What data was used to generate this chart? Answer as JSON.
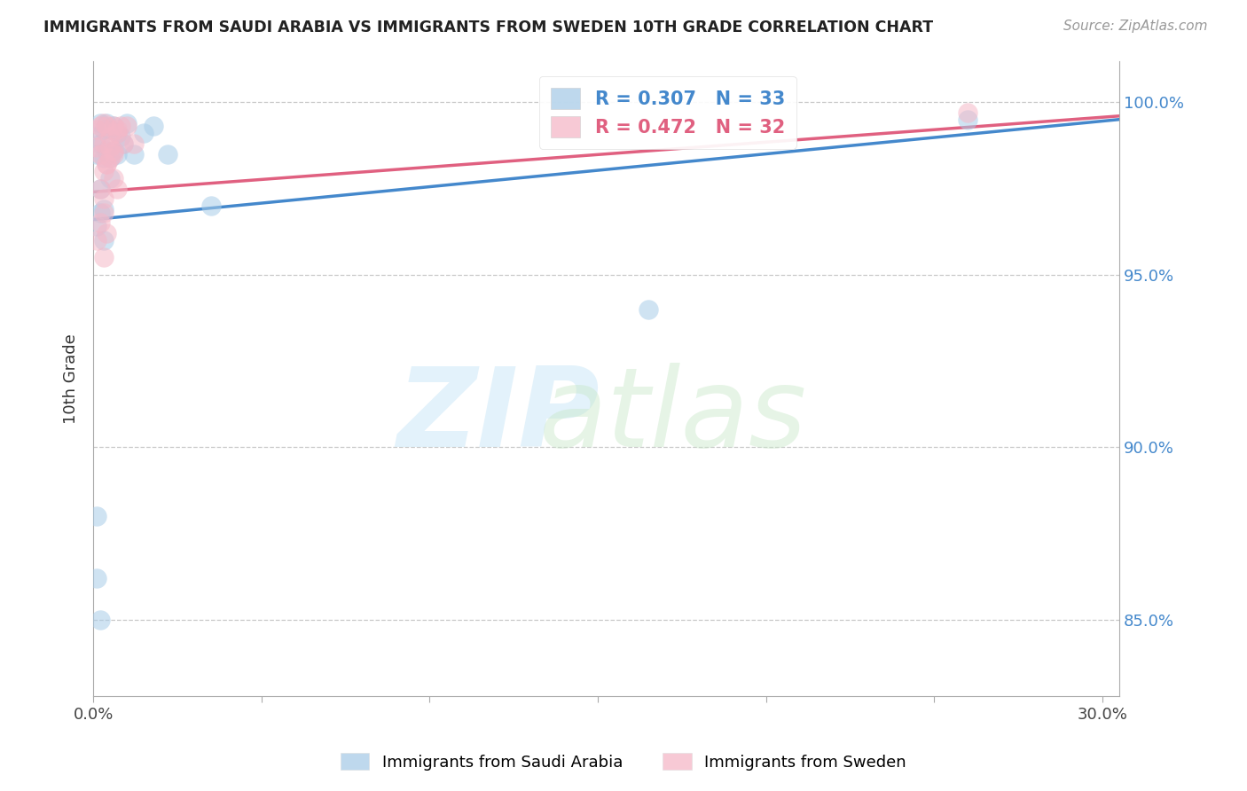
{
  "title": "IMMIGRANTS FROM SAUDI ARABIA VS IMMIGRANTS FROM SWEDEN 10TH GRADE CORRELATION CHART",
  "source": "Source: ZipAtlas.com",
  "ylabel": "10th Grade",
  "blue_color": "#a8cce8",
  "pink_color": "#f5b8c8",
  "blue_line_color": "#4488cc",
  "pink_line_color": "#e06080",
  "legend_blue_label": "R = 0.307   N = 33",
  "legend_pink_label": "R = 0.472   N = 32",
  "legend_bottom_blue": "Immigrants from Saudi Arabia",
  "legend_bottom_pink": "Immigrants from Sweden",
  "xlim": [
    0.0,
    0.305
  ],
  "ylim": [
    0.828,
    1.012
  ],
  "yticks": [
    0.85,
    0.9,
    0.95,
    1.0
  ],
  "ytick_labels": [
    "85.0%",
    "90.0%",
    "95.0%",
    "100.0%"
  ],
  "xtick_left_label": "0.0%",
  "xtick_right_label": "30.0%",
  "blue_line_x0": 0.0,
  "blue_line_y0": 0.966,
  "blue_line_x1": 0.305,
  "blue_line_y1": 0.995,
  "pink_line_x0": 0.0,
  "pink_line_y0": 0.974,
  "pink_line_x1": 0.305,
  "pink_line_y1": 0.996,
  "saudi_x": [
    0.001,
    0.001,
    0.002,
    0.002,
    0.003,
    0.003,
    0.004,
    0.004,
    0.005,
    0.005,
    0.005,
    0.006,
    0.006,
    0.007,
    0.007,
    0.008,
    0.009,
    0.01,
    0.012,
    0.015,
    0.018,
    0.022,
    0.035,
    0.001,
    0.002,
    0.002,
    0.003,
    0.003,
    0.001,
    0.001,
    0.002,
    0.26,
    0.165
  ],
  "saudi_y": [
    0.99,
    0.985,
    0.994,
    0.988,
    0.992,
    0.984,
    0.994,
    0.986,
    0.992,
    0.984,
    0.978,
    0.993,
    0.986,
    0.991,
    0.985,
    0.99,
    0.988,
    0.994,
    0.985,
    0.991,
    0.993,
    0.985,
    0.97,
    0.964,
    0.968,
    0.975,
    0.969,
    0.96,
    0.88,
    0.862,
    0.85,
    0.995,
    0.94
  ],
  "sweden_x": [
    0.001,
    0.001,
    0.002,
    0.002,
    0.003,
    0.003,
    0.004,
    0.004,
    0.005,
    0.005,
    0.006,
    0.006,
    0.007,
    0.008,
    0.009,
    0.01,
    0.012,
    0.003,
    0.004,
    0.005,
    0.002,
    0.003,
    0.006,
    0.007,
    0.26,
    0.003,
    0.004,
    0.002,
    0.006,
    0.007,
    0.001,
    0.003
  ],
  "sweden_y": [
    0.992,
    0.987,
    0.993,
    0.985,
    0.994,
    0.988,
    0.993,
    0.982,
    0.99,
    0.984,
    0.993,
    0.986,
    0.991,
    0.993,
    0.988,
    0.993,
    0.988,
    0.98,
    0.982,
    0.987,
    0.975,
    0.972,
    0.985,
    0.992,
    0.997,
    0.968,
    0.962,
    0.965,
    0.978,
    0.975,
    0.96,
    0.955
  ]
}
